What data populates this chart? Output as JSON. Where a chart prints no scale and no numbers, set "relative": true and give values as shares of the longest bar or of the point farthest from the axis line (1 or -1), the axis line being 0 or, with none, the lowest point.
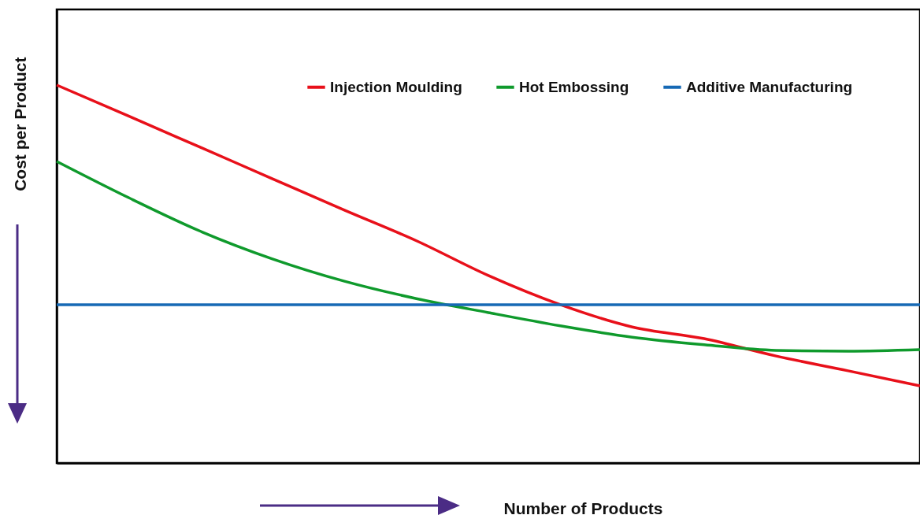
{
  "chart_data": {
    "type": "line",
    "xlabel": "Number of Products",
    "ylabel": "Cost per Product",
    "relative": true,
    "legend": "top right",
    "grid": false,
    "marker": "none",
    "line_style": "solid",
    "categories": [
      null,
      null,
      null,
      null,
      null,
      null,
      null,
      null,
      null,
      null,
      null,
      null,
      null
    ],
    "series": [
      {
        "name": "Injection Moulding",
        "color": "#e8101a",
        "values": [
          1,
          0.918,
          0.835,
          0.752,
          0.669,
          0.588,
          0.496,
          0.419,
          0.36,
          0.329,
          0.283,
          0.244,
          0.204
        ]
      },
      {
        "name": "Hot Embossing",
        "color": "#0f9a2c",
        "values": [
          0.798,
          0.702,
          0.613,
          0.54,
          0.481,
          0.435,
          0.398,
          0.363,
          0.333,
          0.313,
          0.298,
          0.296,
          0.3
        ]
      },
      {
        "name": "Additive Manufacturing",
        "color": "#1669b5",
        "values": [
          0.419,
          0.419,
          0.419,
          0.419,
          0.419,
          0.419,
          0.419,
          0.419,
          0.419,
          0.419,
          0.419,
          0.419,
          0.419
        ]
      }
    ]
  }
}
